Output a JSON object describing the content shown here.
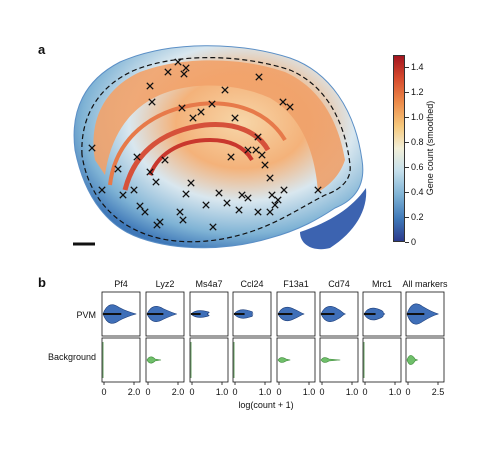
{
  "panels": {
    "a": "a",
    "b": "b"
  },
  "colorbar": {
    "label": "Gene count (smoothed)",
    "ticks": [
      "1.4",
      "1.2",
      "1.0",
      "0.8",
      "0.6",
      "0.4",
      "0.2",
      "0"
    ],
    "tick_values": [
      1.4,
      1.2,
      1.0,
      0.8,
      0.6,
      0.4,
      0.2,
      0
    ],
    "range": [
      0,
      1.5
    ],
    "colors": [
      "#2b3a8c",
      "#7fb3d5",
      "#f2efd8",
      "#ec8b4a",
      "#a3151f"
    ]
  },
  "violin": {
    "genes": [
      "Pf4",
      "Lyz2",
      "Ms4a7",
      "Ccl24",
      "F13a1",
      "Cd74",
      "Mrc1",
      "All markers"
    ],
    "rows": [
      "PVM",
      "Background"
    ],
    "xlabel": "log(count + 1)",
    "xticks": [
      [
        "0",
        "2.0"
      ],
      [
        "0",
        "2.0"
      ],
      [
        "0",
        "1.0"
      ],
      [
        "0",
        "1.0"
      ],
      [
        "0",
        "1.0"
      ],
      [
        "0",
        "1.0"
      ],
      [
        "0",
        "1.0"
      ],
      [
        "0",
        "2.5"
      ]
    ],
    "pvm_color": "#3f6fb8",
    "background_color": "#6fbf6a"
  }
}
